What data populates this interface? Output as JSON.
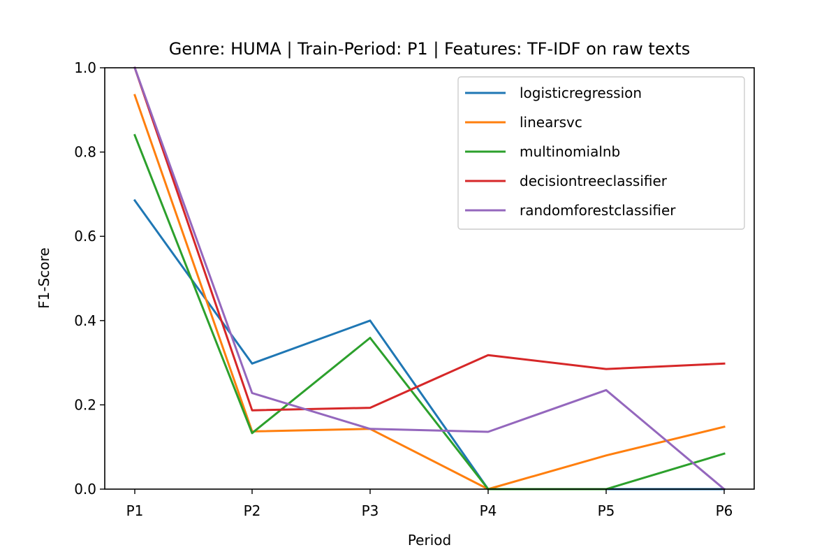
{
  "chart_data": {
    "type": "line",
    "title": "Genre: HUMA | Train-Period: P1 | Features: TF-IDF on raw texts",
    "xlabel": "Period",
    "ylabel": "F1-Score",
    "categories": [
      "P1",
      "P2",
      "P3",
      "P4",
      "P5",
      "P6"
    ],
    "ylim": [
      0.0,
      1.0
    ],
    "yticks": [
      "0.0",
      "0.2",
      "0.4",
      "0.6",
      "0.8",
      "1.0"
    ],
    "grid": false,
    "legend_position": "top-right",
    "series": [
      {
        "name": "logisticregression",
        "color": "#1f77b4",
        "values": [
          0.685,
          0.298,
          0.4,
          0.0,
          0.0,
          0.0
        ]
      },
      {
        "name": "linearsvc",
        "color": "#ff7f0e",
        "values": [
          0.935,
          0.137,
          0.143,
          0.0,
          0.08,
          0.148
        ]
      },
      {
        "name": "multinomialnb",
        "color": "#2ca02c",
        "values": [
          0.84,
          0.133,
          0.359,
          0.0,
          0.0,
          0.084
        ]
      },
      {
        "name": "decisiontreeclassifier",
        "color": "#d62728",
        "values": [
          1.0,
          0.187,
          0.193,
          0.318,
          0.285,
          0.298
        ]
      },
      {
        "name": "randomforestclassifier",
        "color": "#9467bd",
        "values": [
          1.0,
          0.228,
          0.143,
          0.136,
          0.235,
          0.0
        ]
      }
    ]
  }
}
